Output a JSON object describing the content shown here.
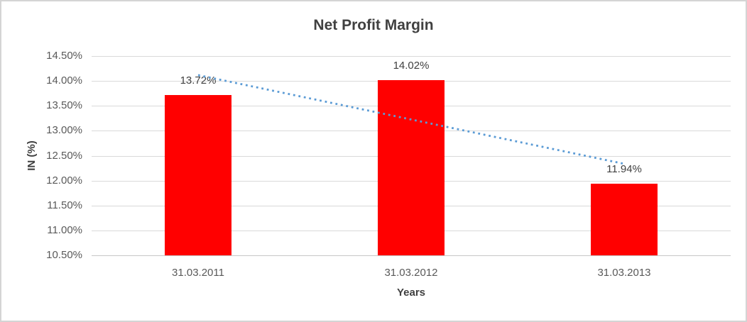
{
  "chart_data": {
    "type": "bar",
    "title": "Net Profit Margin",
    "xlabel": "Years",
    "ylabel": "IN (%)",
    "categories": [
      "31.03.2011",
      "31.03.2012",
      "31.03.2013"
    ],
    "series": [
      {
        "name": "Net Profit Margin",
        "values": [
          13.72,
          14.02,
          11.94
        ]
      }
    ],
    "data_labels": [
      "13.72%",
      "14.02%",
      "11.94%"
    ],
    "ylim": [
      10.5,
      14.5
    ],
    "ytick_step": 0.5,
    "ytick_labels": [
      "14.50%",
      "14.00%",
      "13.50%",
      "13.00%",
      "12.50%",
      "12.00%",
      "11.50%",
      "11.00%",
      "10.50%"
    ],
    "grid": true,
    "legend": "none",
    "bar_color": "#FF0000",
    "trendline": {
      "type": "linear",
      "style": "dotted",
      "color": "#5B9BD5"
    },
    "colors": {
      "title": "#404040",
      "tick_labels": "#595959",
      "gridline": "#D9D9D9",
      "axis_line": "#C6C6C6",
      "frame_border": "#D4D4D4",
      "background": "#FFFFFF"
    }
  }
}
